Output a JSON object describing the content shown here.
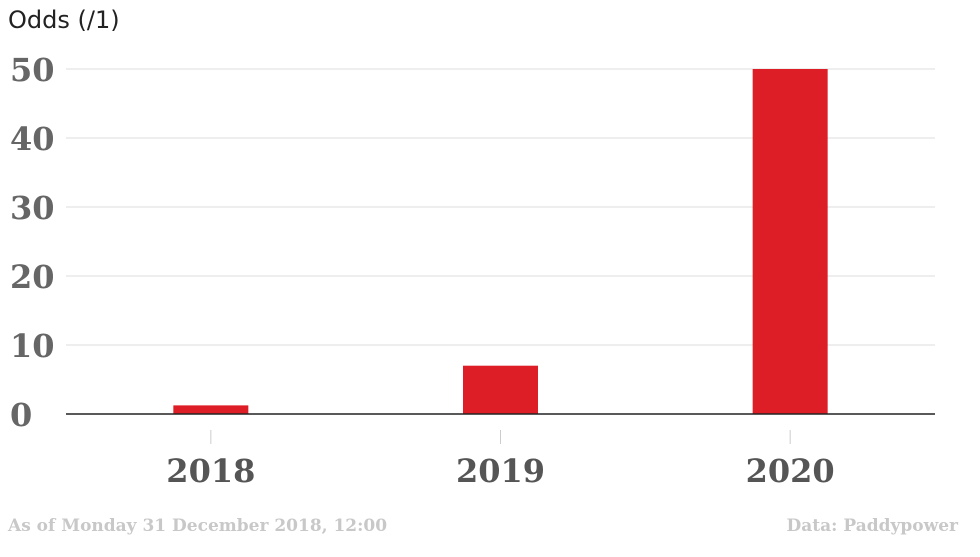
{
  "chart_data": {
    "type": "bar",
    "title": "",
    "ylabel": "Odds (/1)",
    "xlabel": "",
    "categories": [
      "2018",
      "2019",
      "2020"
    ],
    "values": [
      1.25,
      7,
      50
    ],
    "ylim": [
      0,
      50
    ],
    "yticks": [
      0,
      10,
      20,
      30,
      40,
      50
    ],
    "grid": true,
    "bar_color": "#dd1e26"
  },
  "footer": {
    "note": "As of Monday 31 December 2018, 12:00",
    "source": "Data: Paddypower"
  }
}
